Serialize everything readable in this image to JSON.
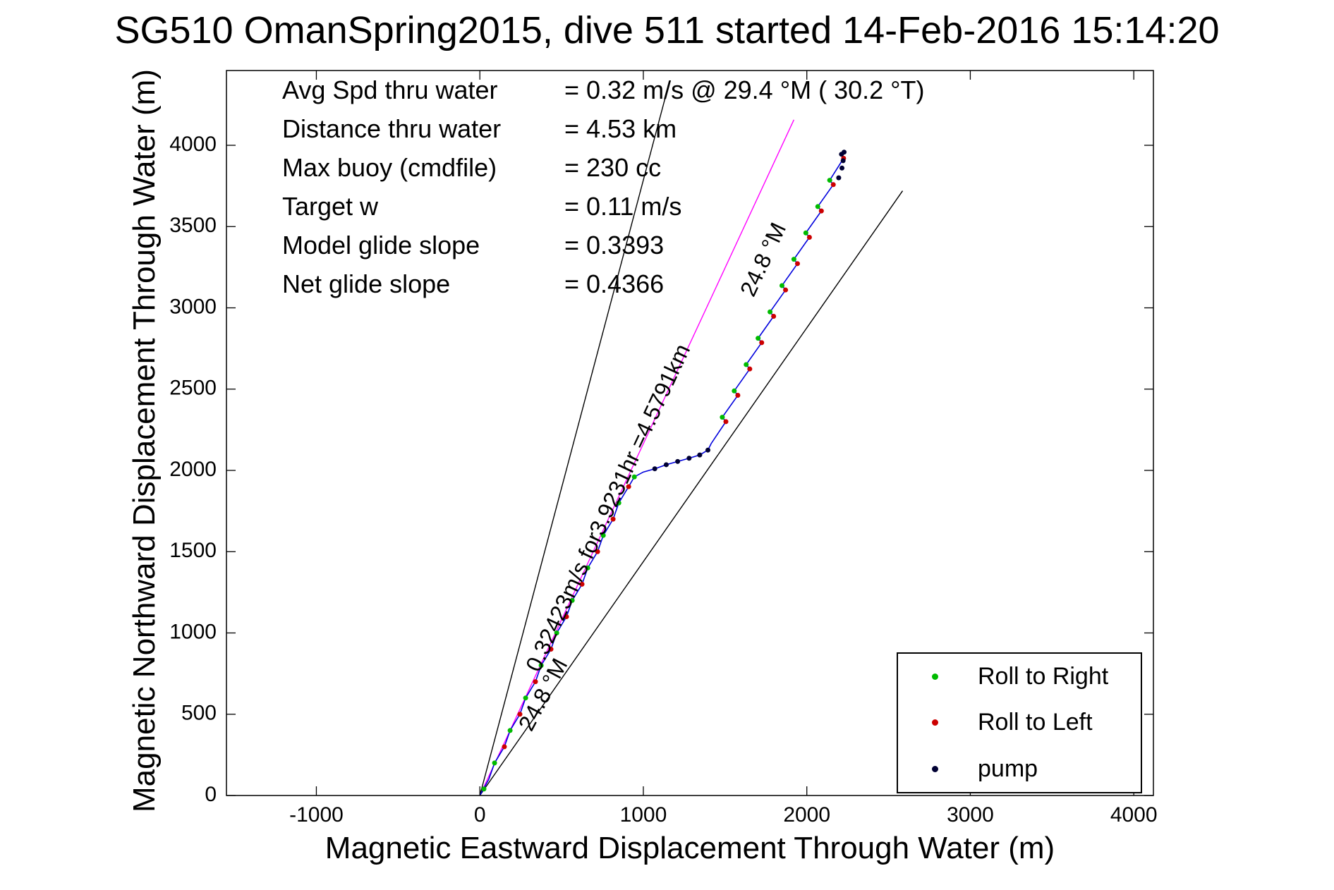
{
  "title": "SG510 OmanSpring2015, dive 511 started 14-Feb-2016 15:14:20",
  "axes": {
    "x_label": "Magnetic Eastward Displacement Through Water (m)",
    "y_label": "Magnetic Northward Displacement Through Water (m)"
  },
  "stats": {
    "rows": [
      {
        "label": "Avg Spd thru water",
        "value": "=  0.32 m/s @  29.4 °M ( 30.2 °T)"
      },
      {
        "label": "Distance thru water",
        "value": "=  4.53 km"
      },
      {
        "label": "Max buoy (cmdfile)",
        "value": "= 230 cc"
      },
      {
        "label": "Target w",
        "value": "= 0.11 m/s"
      },
      {
        "label": "Model glide slope",
        "value": "= 0.3393"
      },
      {
        "label": "Net glide slope",
        "value": "= 0.4366"
      }
    ]
  },
  "annotations": {
    "speed_line": {
      "text": "0.32423m/s for3.9231hr =4.5791km"
    },
    "bearing_top": {
      "text": "24.8 °M"
    },
    "bearing_bottom": {
      "text": "24.8 °M"
    }
  },
  "legend": {
    "items": [
      {
        "label": "Roll to Right",
        "color": "#00bb00"
      },
      {
        "label": "Roll to Left",
        "color": "#cc0000"
      },
      {
        "label": "pump",
        "color": "#000033"
      }
    ]
  },
  "chart_data": {
    "type": "line",
    "title": "SG510 OmanSpring2015, dive 511 started 14-Feb-2016 15:14:20",
    "xlabel": "Magnetic Eastward Displacement Through Water (m)",
    "ylabel": "Magnetic Northward Displacement Through Water (m)",
    "xlim": [
      -1550,
      4120
    ],
    "ylim": [
      0,
      4460
    ],
    "x_ticks": [
      -1000,
      0,
      1000,
      2000,
      3000,
      4000
    ],
    "y_ticks": [
      0,
      500,
      1000,
      1500,
      2000,
      2500,
      3000,
      3500,
      4000
    ],
    "grid": false,
    "legend_position": "lower right",
    "track_color": "#0000dd",
    "track": [
      [
        0,
        0
      ],
      [
        55,
        100
      ],
      [
        90,
        200
      ],
      [
        150,
        300
      ],
      [
        185,
        400
      ],
      [
        245,
        500
      ],
      [
        280,
        600
      ],
      [
        340,
        700
      ],
      [
        375,
        800
      ],
      [
        435,
        900
      ],
      [
        470,
        1000
      ],
      [
        530,
        1100
      ],
      [
        565,
        1200
      ],
      [
        625,
        1300
      ],
      [
        660,
        1400
      ],
      [
        720,
        1500
      ],
      [
        755,
        1600
      ],
      [
        815,
        1700
      ],
      [
        850,
        1800
      ],
      [
        910,
        1900
      ],
      [
        945,
        1960
      ],
      [
        1000,
        1990
      ],
      [
        1070,
        2010
      ],
      [
        1140,
        2035
      ],
      [
        1210,
        2055
      ],
      [
        1280,
        2075
      ],
      [
        1345,
        2095
      ],
      [
        1395,
        2125
      ],
      [
        1415,
        2165
      ],
      [
        1505,
        2300
      ],
      [
        1483,
        2327
      ],
      [
        1578,
        2462
      ],
      [
        1556,
        2489
      ],
      [
        1651,
        2624
      ],
      [
        1629,
        2651
      ],
      [
        1724,
        2786
      ],
      [
        1702,
        2813
      ],
      [
        1797,
        2948
      ],
      [
        1775,
        2975
      ],
      [
        1870,
        3110
      ],
      [
        1848,
        3137
      ],
      [
        1943,
        3272
      ],
      [
        1921,
        3299
      ],
      [
        2016,
        3434
      ],
      [
        1994,
        3461
      ],
      [
        2089,
        3596
      ],
      [
        2067,
        3623
      ],
      [
        2162,
        3758
      ],
      [
        2140,
        3785
      ],
      [
        2225,
        3920
      ],
      [
        2210,
        3950
      ],
      [
        2230,
        3960
      ]
    ],
    "reference_lines": [
      {
        "name": "course-made-good-line",
        "color": "#ff00ff",
        "points": [
          [
            0,
            0
          ],
          [
            1921,
            4157
          ]
        ]
      },
      {
        "name": "bearing-sector-left-line",
        "color": "#000000",
        "points": [
          [
            0,
            0
          ],
          [
            1157,
            4380
          ]
        ]
      },
      {
        "name": "bearing-sector-right-line",
        "color": "#000000",
        "points": [
          [
            0,
            0
          ],
          [
            2586,
            3720
          ]
        ]
      }
    ],
    "markers": {
      "roll_right": {
        "color": "#00bb00",
        "points": [
          [
            25,
            40
          ],
          [
            90,
            200
          ],
          [
            185,
            400
          ],
          [
            280,
            600
          ],
          [
            375,
            800
          ],
          [
            470,
            1000
          ],
          [
            565,
            1200
          ],
          [
            660,
            1400
          ],
          [
            755,
            1600
          ],
          [
            850,
            1800
          ],
          [
            945,
            1960
          ],
          [
            1483,
            2327
          ],
          [
            1556,
            2489
          ],
          [
            1629,
            2651
          ],
          [
            1702,
            2813
          ],
          [
            1775,
            2975
          ],
          [
            1848,
            3137
          ],
          [
            1921,
            3299
          ],
          [
            1994,
            3461
          ],
          [
            2067,
            3623
          ],
          [
            2140,
            3785
          ]
        ]
      },
      "roll_left": {
        "color": "#cc0000",
        "points": [
          [
            150,
            300
          ],
          [
            245,
            500
          ],
          [
            340,
            700
          ],
          [
            435,
            900
          ],
          [
            530,
            1100
          ],
          [
            625,
            1300
          ],
          [
            720,
            1500
          ],
          [
            815,
            1700
          ],
          [
            910,
            1900
          ],
          [
            1505,
            2300
          ],
          [
            1578,
            2462
          ],
          [
            1651,
            2624
          ],
          [
            1724,
            2786
          ],
          [
            1797,
            2948
          ],
          [
            1870,
            3110
          ],
          [
            1943,
            3272
          ],
          [
            2016,
            3434
          ],
          [
            2089,
            3596
          ],
          [
            2162,
            3758
          ],
          [
            2225,
            3920
          ]
        ]
      },
      "pump": {
        "color": "#000033",
        "points": [
          [
            1070,
            2010
          ],
          [
            1140,
            2035
          ],
          [
            1210,
            2055
          ],
          [
            1280,
            2075
          ],
          [
            1345,
            2095
          ],
          [
            1395,
            2125
          ],
          [
            2195,
            3800
          ],
          [
            2215,
            3860
          ],
          [
            2222,
            3905
          ],
          [
            2212,
            3945
          ],
          [
            2228,
            3958
          ]
        ]
      }
    }
  }
}
